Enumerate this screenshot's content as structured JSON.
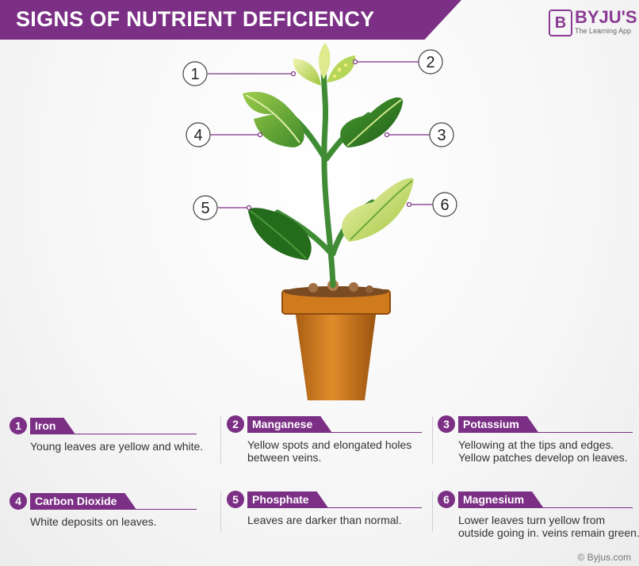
{
  "header": {
    "title": "SIGNS OF NUTRIENT DEFICIENCY"
  },
  "brand": {
    "logo_letter": "B",
    "name": "BYJU'S",
    "tagline": "The Learning App"
  },
  "callouts": [
    "1",
    "2",
    "3",
    "4",
    "5",
    "6"
  ],
  "deficiencies": [
    {
      "number": "1",
      "name": "Iron",
      "description": "Young leaves are yellow and white."
    },
    {
      "number": "2",
      "name": "Manganese",
      "description": "Yellow spots and elongated holes between veins."
    },
    {
      "number": "3",
      "name": "Potassium",
      "description": "Yellowing at the tips and edges. Yellow patches develop on leaves."
    },
    {
      "number": "4",
      "name": "Carbon Dioxide",
      "description": "White deposits on leaves."
    },
    {
      "number": "5",
      "name": "Phosphate",
      "description": "Leaves are darker than normal."
    },
    {
      "number": "6",
      "name": "Magnesium",
      "description": "Lower leaves turn yellow from outside going in. veins remain green."
    }
  ],
  "footer": {
    "copyright": "© Byjus.com"
  },
  "colors": {
    "accent": "#7b2f85",
    "leaf_dark": "#2e7d24",
    "leaf_light": "#c9e27a",
    "pot": "#c8741c"
  }
}
